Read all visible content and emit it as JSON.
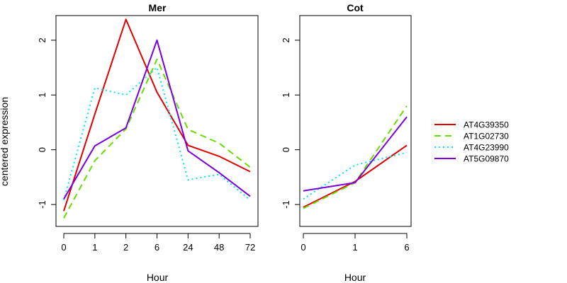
{
  "ylabel": "centered expression",
  "colors": {
    "AT4G39350": "#e00000",
    "AT1G02730": "#66dd00",
    "AT4G23990": "#00e5ee",
    "AT5G09870": "#7a00dd"
  },
  "chart_data": [
    {
      "type": "line",
      "title": "Mer",
      "xlabel": "Hour",
      "categories": [
        "0",
        "1",
        "2",
        "6",
        "24",
        "48",
        "72"
      ],
      "yticks": [
        -1,
        0,
        1,
        2
      ],
      "ylim": [
        -1.4,
        2.45
      ],
      "series": [
        {
          "name": "AT4G39350",
          "values": [
            -1.12,
            0.65,
            2.38,
            1.05,
            0.08,
            -0.12,
            -0.4
          ],
          "dash": "solid"
        },
        {
          "name": "AT1G02730",
          "values": [
            -1.25,
            -0.2,
            0.38,
            1.65,
            0.37,
            0.12,
            -0.32
          ],
          "dash": "dashed"
        },
        {
          "name": "AT4G23990",
          "values": [
            -0.92,
            1.13,
            1.0,
            1.5,
            -0.55,
            -0.45,
            -0.92
          ],
          "dash": "dotted"
        },
        {
          "name": "AT5G09870",
          "values": [
            -0.9,
            0.07,
            0.4,
            2.0,
            -0.02,
            -0.42,
            -0.85
          ],
          "dash": "solid"
        }
      ]
    },
    {
      "type": "line",
      "title": "Cot",
      "xlabel": "Hour",
      "categories": [
        "0",
        "1",
        "6"
      ],
      "yticks": [
        -1,
        0,
        1,
        2
      ],
      "ylim": [
        -1.4,
        2.45
      ],
      "series": [
        {
          "name": "AT4G39350",
          "values": [
            -1.05,
            -0.58,
            0.08
          ],
          "dash": "solid"
        },
        {
          "name": "AT1G02730",
          "values": [
            -1.07,
            -0.6,
            0.8
          ],
          "dash": "dashed"
        },
        {
          "name": "AT4G23990",
          "values": [
            -0.9,
            -0.28,
            -0.05
          ],
          "dash": "dotted"
        },
        {
          "name": "AT5G09870",
          "values": [
            -0.75,
            -0.6,
            0.6
          ],
          "dash": "solid"
        }
      ]
    }
  ],
  "legend": {
    "position": "right",
    "items": [
      "AT4G39350",
      "AT1G02730",
      "AT4G23990",
      "AT5G09870"
    ]
  }
}
